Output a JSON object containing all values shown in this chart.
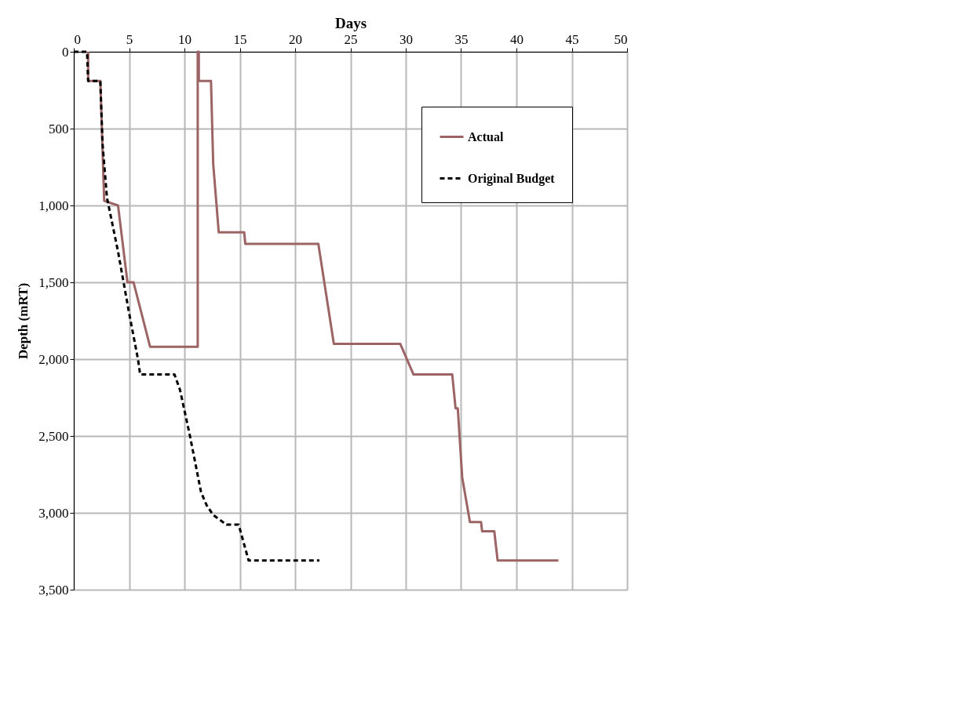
{
  "chart_data": {
    "type": "line",
    "xlabel": "Days",
    "ylabel": "Depth (mRT)",
    "xlim": [
      0,
      50
    ],
    "xticks": [
      0,
      5,
      10,
      15,
      20,
      25,
      30,
      35,
      40,
      45,
      50
    ],
    "ylim": [
      3500,
      0
    ],
    "yticks": [
      0,
      500,
      {
        "value": 1000,
        "label": "1,000"
      },
      {
        "value": 1500,
        "label": "1,500"
      },
      {
        "value": 2000,
        "label": "2,000"
      },
      {
        "value": 2500,
        "label": "2,500"
      },
      {
        "value": 3000,
        "label": "3,000"
      },
      {
        "value": 3500,
        "label": "3,500"
      }
    ],
    "grid": true,
    "legend": "top right",
    "marker": "none",
    "series": [
      {
        "name": "Actual",
        "color": "#9c6464",
        "line_style": "solid",
        "x": [
          1.3,
          1.3,
          2.4,
          2.75,
          4.0,
          4.85,
          5.4,
          6.9,
          11.2,
          11.2,
          11.3,
          11.3,
          12.4,
          12.6,
          13.1,
          15.4,
          15.5,
          22.1,
          23.5,
          29.5,
          30.7,
          34.2,
          34.5,
          34.7,
          35.1,
          35.8,
          36.8,
          36.9,
          38.0,
          38.3,
          43.8
        ],
        "values": [
          0,
          190,
          190,
          970,
          1000,
          1500,
          1500,
          1920,
          1920,
          0,
          0,
          190,
          190,
          730,
          1175,
          1175,
          1250,
          1250,
          1900,
          1900,
          2100,
          2100,
          2320,
          2320,
          2770,
          3060,
          3060,
          3120,
          3120,
          3310,
          3310
        ]
      },
      {
        "name": "Original Budget",
        "color": "#000000",
        "line_style": "dashed",
        "x": [
          0,
          1.2,
          1.3,
          2.4,
          2.6,
          3.0,
          4.0,
          5.0,
          5.8,
          6.0,
          9.1,
          9.6,
          10.5,
          11.5,
          12.0,
          12.6,
          13.8,
          14.9,
          15.8,
          22.2
        ],
        "values": [
          0,
          0,
          190,
          190,
          600,
          950,
          1300,
          1700,
          2000,
          2100,
          2100,
          2200,
          2500,
          2865,
          2950,
          3014,
          3077,
          3077,
          3310,
          3310
        ]
      }
    ]
  }
}
